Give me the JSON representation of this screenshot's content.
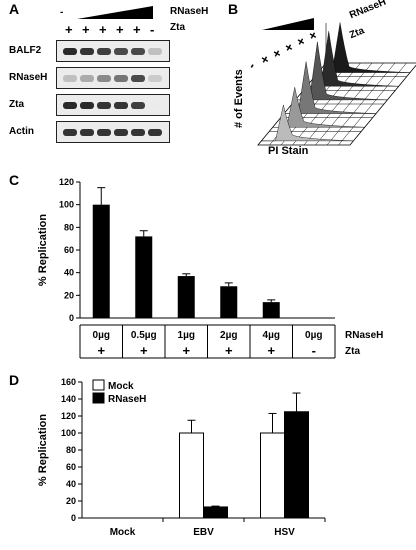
{
  "panels": {
    "A": {
      "label": "A",
      "top_signs": [
        "-",
        "",
        "",
        "",
        "",
        ""
      ],
      "top_factor": "RNaseH",
      "zta_signs": [
        "+",
        "+",
        "+",
        "+",
        "+",
        "-"
      ],
      "zta_label": "Zta",
      "rows": [
        {
          "label": "BALF2",
          "intensity": [
            0.9,
            0.85,
            0.8,
            0.75,
            0.75,
            0.2
          ]
        },
        {
          "label": "RNaseH",
          "intensity": [
            0.2,
            0.3,
            0.45,
            0.55,
            0.75,
            0.15
          ]
        },
        {
          "label": "Zta",
          "intensity": [
            0.9,
            0.9,
            0.85,
            0.85,
            0.8,
            0.0
          ]
        },
        {
          "label": "Actin",
          "intensity": [
            0.85,
            0.85,
            0.85,
            0.85,
            0.85,
            0.85
          ]
        }
      ]
    },
    "B": {
      "label": "B",
      "signs": [
        "-",
        "+",
        "+",
        "+",
        "+",
        "+"
      ],
      "factor_top": "RNaseH",
      "factor_bottom": "Zta",
      "ylabel": "# of Events",
      "xlabel": "PI Stain"
    },
    "C": {
      "label": "C",
      "row1_label": "RNaseH",
      "row2_label": "Zta",
      "row2_signs": [
        "+",
        "+",
        "+",
        "+",
        "+",
        "-"
      ]
    },
    "D": {
      "label": "D"
    }
  },
  "chart_data": [
    {
      "id": "C",
      "type": "bar",
      "categories": [
        "0µg",
        "0.5µg",
        "1µg",
        "2µg",
        "4µg",
        "0µg"
      ],
      "values": [
        100,
        72,
        37,
        28,
        14,
        0
      ],
      "errors": [
        15,
        5,
        2,
        3,
        2,
        0
      ],
      "ylabel": "% Replication",
      "ylim": [
        0,
        120
      ],
      "yticks": [
        "0",
        "20",
        "40",
        "60",
        "80",
        "100",
        "120"
      ],
      "grid": false,
      "bar_color": "#000000"
    },
    {
      "id": "D",
      "type": "bar",
      "categories": [
        "Mock",
        "EBV",
        "HSV"
      ],
      "series": [
        {
          "name": "Mock",
          "values": [
            0,
            100,
            100
          ],
          "errors": [
            0,
            15,
            23
          ],
          "color": "#ffffff"
        },
        {
          "name": "RNaseH",
          "values": [
            0,
            13,
            125
          ],
          "errors": [
            0,
            1,
            22
          ],
          "color": "#000000"
        }
      ],
      "ylabel": "% Replication",
      "ylim": [
        0,
        160
      ],
      "yticks": [
        "0",
        "20",
        "40",
        "60",
        "80",
        "100",
        "120",
        "140",
        "160"
      ],
      "legend_position": "top-left",
      "grid": false
    }
  ]
}
